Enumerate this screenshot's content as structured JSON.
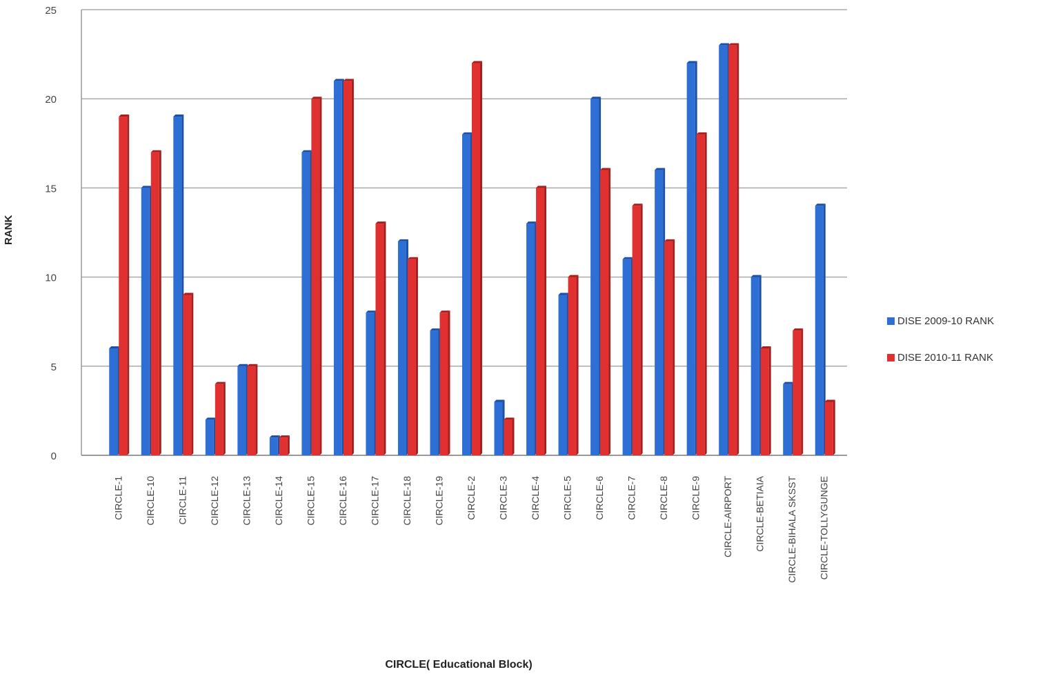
{
  "chart_data": {
    "type": "bar",
    "xlabel": "CIRCLE( Educational Block)",
    "ylabel": "RANK",
    "ylim": [
      0,
      25
    ],
    "yticks": [
      "0",
      "5",
      "10",
      "15",
      "20",
      "25"
    ],
    "grid": true,
    "legend_position": "right",
    "categories": [
      "CIRCLE-1",
      "CIRCLE-10",
      "CIRCLE-11",
      "CIRCLE-12",
      "CIRCLE-13",
      "CIRCLE-14",
      "CIRCLE-15",
      "CIRCLE-16",
      "CIRCLE-17",
      "CIRCLE-18",
      "CIRCLE-19",
      "CIRCLE-2",
      "CIRCLE-3",
      "CIRCLE-4",
      "CIRCLE-5",
      "CIRCLE-6",
      "CIRCLE-7",
      "CIRCLE-8",
      "CIRCLE-9",
      "CIRCLE-AIRPORT",
      "CIRCLE-BETIAIA",
      "CIRCLE-BIHALA SKSST",
      "CIRCLE-TOLLYGUNGE"
    ],
    "series": [
      {
        "name": "DISE 2009-10 RANK",
        "color": "#2e6fd6",
        "values": [
          6,
          15,
          19,
          2,
          5,
          1,
          17,
          21,
          8,
          12,
          7,
          18,
          3,
          13,
          9,
          20,
          11,
          16,
          22,
          23,
          10,
          4,
          14
        ]
      },
      {
        "name": "DISE 2010-11 RANK",
        "color": "#e03030",
        "values": [
          19,
          17,
          9,
          4,
          5,
          1,
          20,
          21,
          13,
          11,
          8,
          22,
          2,
          15,
          10,
          16,
          14,
          12,
          18,
          23,
          6,
          7,
          3
        ]
      }
    ]
  }
}
